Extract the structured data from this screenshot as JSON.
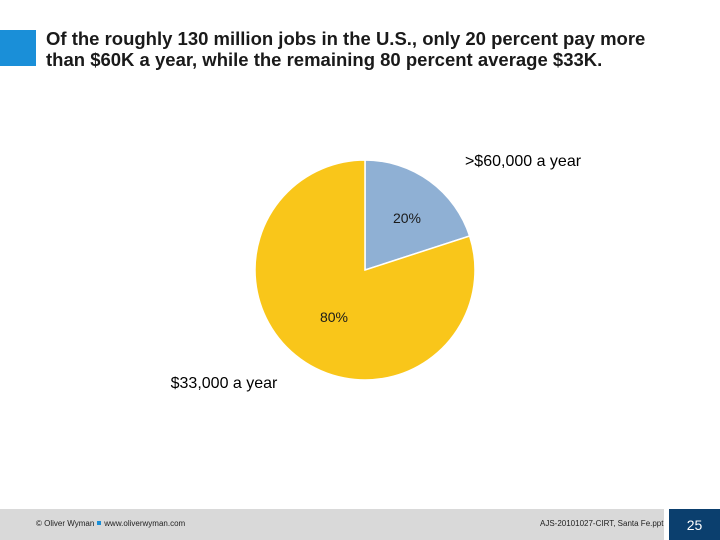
{
  "slide": {
    "title": "Of the roughly 130 million jobs in the U.S., only 20 percent pay more than $60K a year, while the remaining 80 percent average $33K.",
    "accent_color": "#1a8fd8",
    "page_number": "25"
  },
  "chart_data": {
    "type": "pie",
    "title": "",
    "slices": [
      {
        "label": ">$60,000 a year",
        "value": 20,
        "display": "20%",
        "color": "#8fb0d4"
      },
      {
        "label": "$33,000 a year",
        "value": 80,
        "display": "80%",
        "color": "#f9c61a"
      }
    ],
    "start_angle_deg": 0,
    "direction": "clockwise"
  },
  "footer": {
    "copyright": "© Oliver Wyman",
    "website": "www.oliverwyman.com",
    "file_ref": "AJS-20101027-CIRT, Santa Fe.ppt"
  }
}
